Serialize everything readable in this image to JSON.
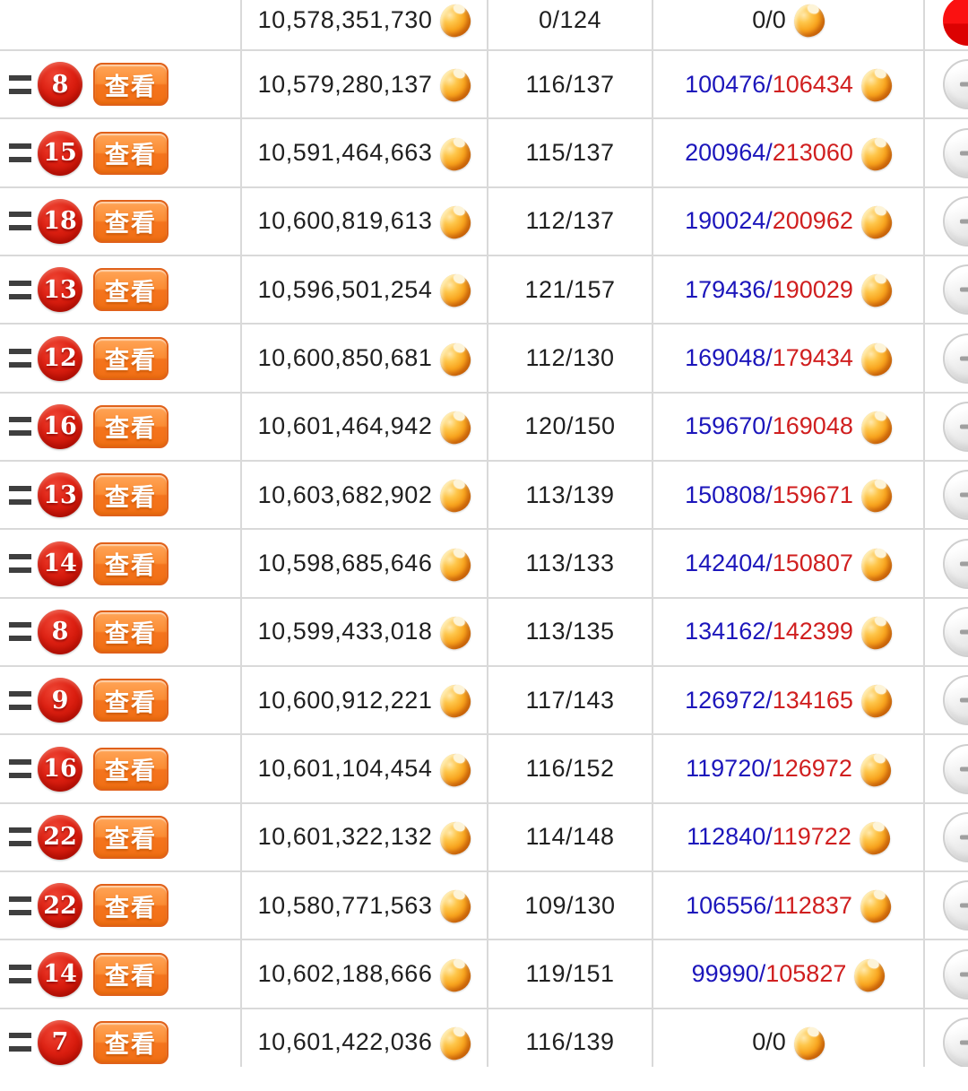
{
  "labels": {
    "view_button": "查看",
    "progress_separator": "/"
  },
  "colors": {
    "progress_current_blue": "#1c16bb",
    "progress_total_red": "#d01f1f",
    "score_text": "#1f1f1f",
    "badge_red": "#d61a0e",
    "button_orange": "#f5741d",
    "active_toggle_red": "#e60000",
    "border_gray": "#d9d9d9"
  },
  "icons": {
    "coin": "gold-bean-icon",
    "tied_rank": "tied-rank-icon"
  },
  "rows": [
    {
      "rank": null,
      "tied": false,
      "score": "10,578,351,730",
      "ratio": "0/124",
      "progress": {
        "plain": "0/0"
      },
      "toggle": "red"
    },
    {
      "rank": "8",
      "tied": true,
      "score": "10,579,280,137",
      "ratio": "116/137",
      "progress": {
        "current": "100476",
        "total": "106434"
      },
      "toggle": "default"
    },
    {
      "rank": "15",
      "tied": true,
      "score": "10,591,464,663",
      "ratio": "115/137",
      "progress": {
        "current": "200964",
        "total": "213060"
      },
      "toggle": "default"
    },
    {
      "rank": "18",
      "tied": true,
      "score": "10,600,819,613",
      "ratio": "112/137",
      "progress": {
        "current": "190024",
        "total": "200962"
      },
      "toggle": "default"
    },
    {
      "rank": "13",
      "tied": true,
      "score": "10,596,501,254",
      "ratio": "121/157",
      "progress": {
        "current": "179436",
        "total": "190029"
      },
      "toggle": "default"
    },
    {
      "rank": "12",
      "tied": true,
      "score": "10,600,850,681",
      "ratio": "112/130",
      "progress": {
        "current": "169048",
        "total": "179434"
      },
      "toggle": "default"
    },
    {
      "rank": "16",
      "tied": true,
      "score": "10,601,464,942",
      "ratio": "120/150",
      "progress": {
        "current": "159670",
        "total": "169048"
      },
      "toggle": "default"
    },
    {
      "rank": "13",
      "tied": true,
      "score": "10,603,682,902",
      "ratio": "113/139",
      "progress": {
        "current": "150808",
        "total": "159671"
      },
      "toggle": "default"
    },
    {
      "rank": "14",
      "tied": true,
      "score": "10,598,685,646",
      "ratio": "113/133",
      "progress": {
        "current": "142404",
        "total": "150807"
      },
      "toggle": "default"
    },
    {
      "rank": "8",
      "tied": true,
      "score": "10,599,433,018",
      "ratio": "113/135",
      "progress": {
        "current": "134162",
        "total": "142399"
      },
      "toggle": "default"
    },
    {
      "rank": "9",
      "tied": true,
      "score": "10,600,912,221",
      "ratio": "117/143",
      "progress": {
        "current": "126972",
        "total": "134165"
      },
      "toggle": "default"
    },
    {
      "rank": "16",
      "tied": true,
      "score": "10,601,104,454",
      "ratio": "116/152",
      "progress": {
        "current": "119720",
        "total": "126972"
      },
      "toggle": "default"
    },
    {
      "rank": "22",
      "tied": true,
      "score": "10,601,322,132",
      "ratio": "114/148",
      "progress": {
        "current": "112840",
        "total": "119722"
      },
      "toggle": "default"
    },
    {
      "rank": "22",
      "tied": true,
      "score": "10,580,771,563",
      "ratio": "109/130",
      "progress": {
        "current": "106556",
        "total": "112837"
      },
      "toggle": "default"
    },
    {
      "rank": "14",
      "tied": true,
      "score": "10,602,188,666",
      "ratio": "119/151",
      "progress": {
        "current": "99990",
        "total": "105827"
      },
      "toggle": "default"
    },
    {
      "rank": "7",
      "tied": true,
      "score": "10,601,422,036",
      "ratio": "116/139",
      "progress": {
        "plain": "0/0"
      },
      "toggle": "default"
    }
  ]
}
